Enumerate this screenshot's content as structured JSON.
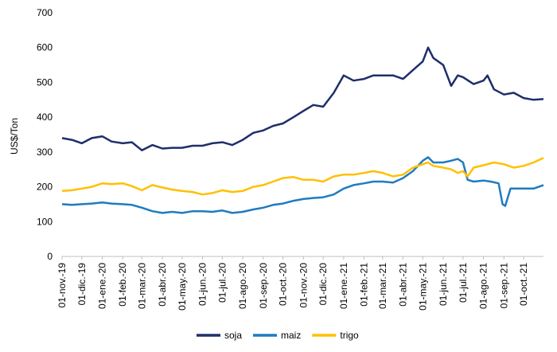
{
  "chart_data": {
    "type": "line",
    "title": "",
    "xlabel": "",
    "ylabel": "US$/Ton",
    "ylim": [
      0,
      700
    ],
    "yticks": [
      0,
      100,
      200,
      300,
      400,
      500,
      600,
      700
    ],
    "x_start": "2019-11-01",
    "x_end": "2021-10-31",
    "x_tick_labels": [
      "01-nov.-19",
      "01-dic.-19",
      "01-ene.-20",
      "01-feb.-20",
      "01-mar.-20",
      "01-abr.-20",
      "01-may.-20",
      "01-jun.-20",
      "01-jul.-20",
      "01-ago.-20",
      "01-sep.-20",
      "01-oct.-20",
      "01-nov.-20",
      "01-dic.-20",
      "01-ene.-21",
      "01-feb.-21",
      "01-mar.-21",
      "01-abr.-21",
      "01-may.-21",
      "01-jun.-21",
      "01-jul.-21",
      "01-ago.-21",
      "01-sep.-21",
      "01-oct.-21"
    ],
    "x_tick_days": [
      0,
      30,
      61,
      92,
      121,
      152,
      182,
      213,
      243,
      274,
      305,
      335,
      366,
      396,
      427,
      458,
      486,
      517,
      547,
      578,
      608,
      639,
      670,
      700
    ],
    "x_end_day": 730,
    "legend_position": "bottom-center",
    "series": [
      {
        "name": "soja",
        "color": "#1F2E6B",
        "points": [
          [
            0,
            340
          ],
          [
            15,
            335
          ],
          [
            30,
            325
          ],
          [
            45,
            340
          ],
          [
            61,
            345
          ],
          [
            75,
            330
          ],
          [
            92,
            325
          ],
          [
            106,
            328
          ],
          [
            121,
            305
          ],
          [
            137,
            320
          ],
          [
            152,
            310
          ],
          [
            167,
            312
          ],
          [
            182,
            312
          ],
          [
            198,
            318
          ],
          [
            213,
            318
          ],
          [
            228,
            325
          ],
          [
            243,
            328
          ],
          [
            258,
            320
          ],
          [
            274,
            335
          ],
          [
            290,
            355
          ],
          [
            305,
            362
          ],
          [
            320,
            375
          ],
          [
            335,
            382
          ],
          [
            351,
            400
          ],
          [
            366,
            418
          ],
          [
            381,
            435
          ],
          [
            396,
            430
          ],
          [
            412,
            470
          ],
          [
            427,
            520
          ],
          [
            442,
            505
          ],
          [
            458,
            510
          ],
          [
            472,
            520
          ],
          [
            486,
            520
          ],
          [
            502,
            520
          ],
          [
            517,
            510
          ],
          [
            532,
            535
          ],
          [
            547,
            560
          ],
          [
            555,
            600
          ],
          [
            563,
            570
          ],
          [
            578,
            550
          ],
          [
            590,
            490
          ],
          [
            600,
            520
          ],
          [
            608,
            515
          ],
          [
            624,
            495
          ],
          [
            639,
            505
          ],
          [
            645,
            520
          ],
          [
            655,
            480
          ],
          [
            670,
            465
          ],
          [
            685,
            470
          ],
          [
            700,
            455
          ],
          [
            715,
            450
          ],
          [
            730,
            452
          ]
        ]
      },
      {
        "name": "maiz",
        "color": "#1F7BC1",
        "points": [
          [
            0,
            150
          ],
          [
            15,
            148
          ],
          [
            30,
            150
          ],
          [
            45,
            152
          ],
          [
            61,
            155
          ],
          [
            75,
            152
          ],
          [
            92,
            150
          ],
          [
            106,
            148
          ],
          [
            121,
            140
          ],
          [
            137,
            130
          ],
          [
            152,
            125
          ],
          [
            167,
            128
          ],
          [
            182,
            125
          ],
          [
            198,
            130
          ],
          [
            213,
            130
          ],
          [
            228,
            128
          ],
          [
            243,
            132
          ],
          [
            258,
            125
          ],
          [
            274,
            128
          ],
          [
            290,
            135
          ],
          [
            305,
            140
          ],
          [
            320,
            148
          ],
          [
            335,
            152
          ],
          [
            351,
            160
          ],
          [
            366,
            165
          ],
          [
            381,
            168
          ],
          [
            396,
            170
          ],
          [
            412,
            178
          ],
          [
            427,
            195
          ],
          [
            442,
            205
          ],
          [
            458,
            210
          ],
          [
            472,
            215
          ],
          [
            486,
            215
          ],
          [
            502,
            212
          ],
          [
            517,
            225
          ],
          [
            532,
            245
          ],
          [
            547,
            275
          ],
          [
            555,
            285
          ],
          [
            563,
            270
          ],
          [
            578,
            270
          ],
          [
            590,
            275
          ],
          [
            600,
            280
          ],
          [
            608,
            270
          ],
          [
            615,
            220
          ],
          [
            624,
            215
          ],
          [
            639,
            218
          ],
          [
            650,
            215
          ],
          [
            662,
            210
          ],
          [
            668,
            150
          ],
          [
            672,
            145
          ],
          [
            680,
            195
          ],
          [
            700,
            195
          ],
          [
            715,
            195
          ],
          [
            730,
            205
          ]
        ]
      },
      {
        "name": "trigo",
        "color": "#FFC000",
        "points": [
          [
            0,
            188
          ],
          [
            15,
            190
          ],
          [
            30,
            195
          ],
          [
            45,
            200
          ],
          [
            61,
            210
          ],
          [
            75,
            208
          ],
          [
            92,
            210
          ],
          [
            106,
            202
          ],
          [
            121,
            190
          ],
          [
            137,
            205
          ],
          [
            152,
            198
          ],
          [
            167,
            192
          ],
          [
            182,
            188
          ],
          [
            198,
            185
          ],
          [
            213,
            178
          ],
          [
            228,
            182
          ],
          [
            243,
            190
          ],
          [
            258,
            185
          ],
          [
            274,
            188
          ],
          [
            290,
            200
          ],
          [
            305,
            205
          ],
          [
            320,
            215
          ],
          [
            335,
            225
          ],
          [
            351,
            228
          ],
          [
            366,
            220
          ],
          [
            381,
            220
          ],
          [
            396,
            215
          ],
          [
            412,
            230
          ],
          [
            427,
            235
          ],
          [
            442,
            235
          ],
          [
            458,
            240
          ],
          [
            472,
            245
          ],
          [
            486,
            240
          ],
          [
            502,
            230
          ],
          [
            517,
            235
          ],
          [
            532,
            255
          ],
          [
            547,
            265
          ],
          [
            555,
            270
          ],
          [
            563,
            260
          ],
          [
            578,
            255
          ],
          [
            590,
            250
          ],
          [
            600,
            240
          ],
          [
            608,
            245
          ],
          [
            615,
            230
          ],
          [
            624,
            255
          ],
          [
            639,
            262
          ],
          [
            655,
            270
          ],
          [
            670,
            265
          ],
          [
            685,
            255
          ],
          [
            700,
            260
          ],
          [
            715,
            270
          ],
          [
            730,
            283
          ]
        ]
      }
    ]
  }
}
